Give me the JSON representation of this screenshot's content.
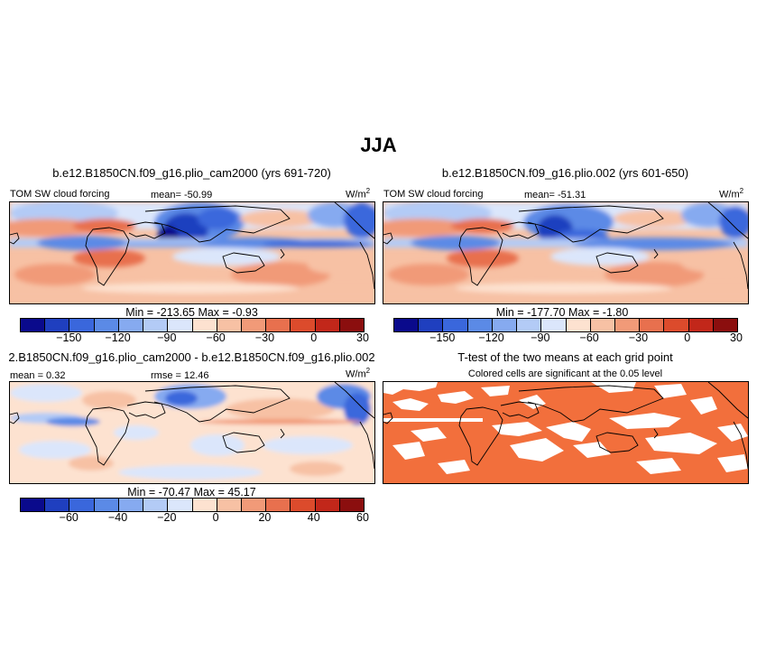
{
  "title": "JJA",
  "panels": [
    {
      "id": "p1",
      "title": "b.e12.B1850CN.f09_g16.plio_cam2000 (yrs 691-720)",
      "variable": "TOM SW cloud forcing",
      "mean": "mean= -50.99",
      "units": "W/m",
      "units_sup": "2",
      "minmax": "Min = -213.65  Max =  -0.93"
    },
    {
      "id": "p2",
      "title": "b.e12.B1850CN.f09_g16.plio.002 (yrs 601-650)",
      "variable": "TOM SW cloud forcing",
      "mean": "mean= -51.31",
      "units": "W/m",
      "units_sup": "2",
      "minmax": "Min = -177.70  Max =  -1.80"
    },
    {
      "id": "p3",
      "title": "2.B1850CN.f09_g16.plio_cam2000 - b.e12.B1850CN.f09_g16.plio.002",
      "mean": "mean =  0.32",
      "rmse": "rmse =  12.46",
      "units": "W/m",
      "units_sup": "2",
      "minmax": "Min = -70.47  Max =  45.17"
    },
    {
      "id": "p4",
      "title": "T-test of the two means at each grid point",
      "subtitle": "Colored cells are significant at the 0.05 level"
    }
  ],
  "chart_data": [
    {
      "type": "heatmap",
      "title": "b.e12.B1850CN.f09_g16.plio_cam2000 (yrs 691-720)",
      "field": "TOM SW cloud forcing",
      "units": "W/m2",
      "mean": -50.99,
      "min": -213.65,
      "max": -0.93,
      "colorbar_ticks": [
        "-150",
        "-120",
        "-90",
        "-60",
        "-30",
        "0",
        "30"
      ],
      "colorbar_colors": [
        "#0a0a8c",
        "#1f3fbf",
        "#3a67dc",
        "#5b8ae6",
        "#86aaf0",
        "#b3cbf6",
        "#dbe6fb",
        "#fde2d0",
        "#f7c1a4",
        "#f19a78",
        "#e8704e",
        "#dc4b2c",
        "#c2271a",
        "#8b0e0e"
      ]
    },
    {
      "type": "heatmap",
      "title": "b.e12.B1850CN.f09_g16.plio.002 (yrs 601-650)",
      "field": "TOM SW cloud forcing",
      "units": "W/m2",
      "mean": -51.31,
      "min": -177.7,
      "max": -1.8,
      "colorbar_ticks": [
        "-150",
        "-120",
        "-90",
        "-60",
        "-30",
        "0",
        "30"
      ],
      "colorbar_colors": [
        "#0a0a8c",
        "#1f3fbf",
        "#3a67dc",
        "#5b8ae6",
        "#86aaf0",
        "#b3cbf6",
        "#dbe6fb",
        "#fde2d0",
        "#f7c1a4",
        "#f19a78",
        "#e8704e",
        "#dc4b2c",
        "#c2271a",
        "#8b0e0e"
      ]
    },
    {
      "type": "heatmap",
      "title": "2.B1850CN.f09_g16.plio_cam2000 - b.e12.B1850CN.f09_g16.plio.002",
      "units": "W/m2",
      "mean": 0.32,
      "rmse": 12.46,
      "min": -70.47,
      "max": 45.17,
      "colorbar_ticks": [
        "-60",
        "-40",
        "-20",
        "0",
        "20",
        "40",
        "60"
      ],
      "colorbar_colors": [
        "#0a0a8c",
        "#1f3fbf",
        "#3a67dc",
        "#5b8ae6",
        "#86aaf0",
        "#b3cbf6",
        "#dbe6fb",
        "#fde2d0",
        "#f7c1a4",
        "#f19a78",
        "#e8704e",
        "#dc4b2c",
        "#c2271a",
        "#8b0e0e"
      ]
    },
    {
      "type": "heatmap",
      "title": "T-test of the two means at each grid point",
      "subtitle": "Colored cells are significant at the 0.05 level",
      "significant_color": "#f26f3c",
      "not_significant_color": "#ffffff"
    }
  ]
}
